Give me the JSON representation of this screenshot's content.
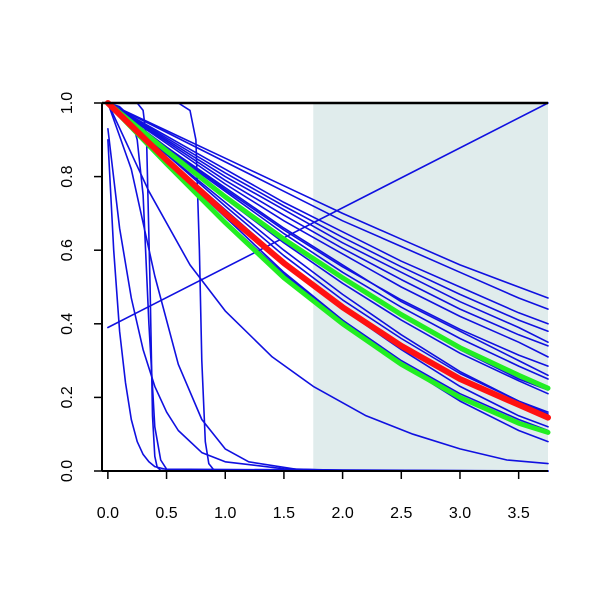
{
  "chart_data": {
    "type": "line",
    "title": "",
    "xlabel": "",
    "ylabel": "",
    "xlim": [
      -0.05,
      3.75
    ],
    "ylim": [
      0.0,
      1.0
    ],
    "x_ticks": [
      0.0,
      0.5,
      1.0,
      1.5,
      2.0,
      2.5,
      3.0,
      3.5
    ],
    "x_tick_labels": [
      "0.0",
      "0.5",
      "1.0",
      "1.5",
      "2.0",
      "2.5",
      "3.0",
      "3.5"
    ],
    "y_ticks": [
      0.0,
      0.2,
      0.4,
      0.6,
      0.8,
      1.0
    ],
    "y_tick_labels": [
      "0.0",
      "0.2",
      "0.4",
      "0.6",
      "0.8",
      "1.0"
    ],
    "grid": false,
    "shaded_region": {
      "x_start": 1.75,
      "x_end": 3.75,
      "color": "#e0ecec"
    },
    "colors": {
      "blue": "#1010e0",
      "green": "#22ee22",
      "red": "#ff1111"
    },
    "series": [
      {
        "color": "blue",
        "width": 1.6,
        "x": [
          0,
          3.75
        ],
        "y": [
          0.39,
          1.0
        ]
      },
      {
        "color": "blue",
        "width": 1.6,
        "x": [
          0,
          0.35,
          0.7,
          1.0,
          1.4,
          1.75,
          2.2,
          2.6,
          3.0,
          3.4,
          3.75
        ],
        "y": [
          1.0,
          0.76,
          0.56,
          0.435,
          0.31,
          0.23,
          0.15,
          0.1,
          0.06,
          0.03,
          0.02
        ]
      },
      {
        "color": "blue",
        "width": 1.6,
        "x": [
          0,
          0.1,
          0.2,
          0.3,
          0.4,
          0.5,
          0.6,
          0.8,
          1.0,
          1.5,
          2.0,
          3.75
        ],
        "y": [
          0.93,
          0.66,
          0.47,
          0.33,
          0.23,
          0.16,
          0.11,
          0.05,
          0.025,
          0.006,
          0.002,
          0.0
        ]
      },
      {
        "color": "blue",
        "width": 1.6,
        "x": [
          0,
          0.05,
          0.1,
          0.15,
          0.2,
          0.25,
          0.3,
          0.35,
          0.4,
          0.5,
          0.7,
          1.0,
          3.75
        ],
        "y": [
          0.9,
          0.6,
          0.38,
          0.24,
          0.14,
          0.08,
          0.045,
          0.025,
          0.012,
          0.004,
          0.001,
          0.0,
          0.0
        ]
      },
      {
        "color": "blue",
        "width": 1.6,
        "x": [
          0,
          0.2,
          0.4,
          0.6,
          0.8,
          1.0,
          1.2,
          1.6,
          2.0,
          3.75
        ],
        "y": [
          1.0,
          0.82,
          0.53,
          0.29,
          0.14,
          0.06,
          0.025,
          0.005,
          0.001,
          0.0
        ]
      },
      {
        "color": "blue",
        "width": 1.6,
        "x": [
          0,
          0.25,
          0.3,
          0.33,
          0.36,
          0.38,
          0.4,
          0.42,
          0.45,
          0.5,
          3.75
        ],
        "y": [
          1.0,
          1.0,
          0.98,
          0.9,
          0.5,
          0.15,
          0.04,
          0.01,
          0.002,
          0.0,
          0.0
        ]
      },
      {
        "color": "blue",
        "width": 1.6,
        "x": [
          0,
          0.1,
          0.2,
          0.25,
          0.3,
          0.35,
          0.4,
          0.45,
          0.5,
          3.75
        ],
        "y": [
          1.0,
          0.99,
          0.96,
          0.9,
          0.75,
          0.4,
          0.12,
          0.03,
          0.005,
          0.0
        ]
      },
      {
        "color": "blue",
        "width": 1.6,
        "x": [
          0,
          0.6,
          0.7,
          0.75,
          0.78,
          0.8,
          0.83,
          0.86,
          0.9,
          1.0,
          3.75
        ],
        "y": [
          1.0,
          1.0,
          0.98,
          0.9,
          0.6,
          0.3,
          0.08,
          0.02,
          0.004,
          0.0,
          0.0
        ]
      },
      {
        "color": "blue",
        "width": 1.6,
        "x": [
          0,
          0.5,
          1.0,
          1.5,
          2.0,
          2.5,
          3.0,
          3.5,
          3.75
        ],
        "y": [
          1.0,
          0.87,
          0.75,
          0.63,
          0.52,
          0.42,
          0.33,
          0.25,
          0.22
        ]
      },
      {
        "color": "blue",
        "width": 1.6,
        "x": [
          0,
          0.5,
          1.0,
          1.5,
          2.0,
          2.5,
          3.0,
          3.5,
          3.75
        ],
        "y": [
          1.0,
          0.86,
          0.73,
          0.6,
          0.48,
          0.37,
          0.27,
          0.19,
          0.16
        ]
      },
      {
        "color": "blue",
        "width": 1.6,
        "x": [
          0,
          0.5,
          1.0,
          1.5,
          2.0,
          2.5,
          3.0,
          3.5,
          3.75
        ],
        "y": [
          1.0,
          0.85,
          0.71,
          0.57,
          0.44,
          0.33,
          0.23,
          0.15,
          0.12
        ]
      },
      {
        "color": "blue",
        "width": 1.6,
        "x": [
          0,
          0.5,
          1.0,
          1.5,
          2.0,
          2.5,
          3.0,
          3.5,
          3.75
        ],
        "y": [
          1.0,
          0.84,
          0.69,
          0.54,
          0.41,
          0.29,
          0.19,
          0.11,
          0.08
        ]
      },
      {
        "color": "blue",
        "width": 1.6,
        "x": [
          0,
          0.5,
          1.0,
          1.5,
          2.0,
          2.5,
          3.0,
          3.5,
          3.75
        ],
        "y": [
          1.0,
          0.88,
          0.77,
          0.66,
          0.56,
          0.46,
          0.38,
          0.3,
          0.26
        ]
      },
      {
        "color": "blue",
        "width": 1.6,
        "x": [
          0,
          0.5,
          1.0,
          1.5,
          2.0,
          2.5,
          3.0,
          3.5,
          3.75
        ],
        "y": [
          1.0,
          0.89,
          0.78,
          0.68,
          0.59,
          0.5,
          0.42,
          0.35,
          0.31
        ]
      },
      {
        "color": "blue",
        "width": 1.6,
        "x": [
          0,
          0.5,
          1.0,
          1.5,
          2.0,
          2.5,
          3.0,
          3.5,
          3.75
        ],
        "y": [
          1.0,
          0.9,
          0.8,
          0.71,
          0.62,
          0.54,
          0.46,
          0.39,
          0.35
        ]
      },
      {
        "color": "blue",
        "width": 1.6,
        "x": [
          0,
          0.5,
          1.0,
          1.5,
          2.0,
          2.5,
          3.0,
          3.5,
          3.75
        ],
        "y": [
          1.0,
          0.91,
          0.82,
          0.73,
          0.65,
          0.57,
          0.5,
          0.43,
          0.4
        ]
      },
      {
        "color": "blue",
        "width": 1.6,
        "x": [
          0,
          0.5,
          1.0,
          1.5,
          2.0,
          2.5,
          3.0,
          3.5,
          3.75
        ],
        "y": [
          1.0,
          0.92,
          0.84,
          0.76,
          0.68,
          0.61,
          0.54,
          0.47,
          0.44
        ]
      },
      {
        "color": "blue",
        "width": 1.6,
        "x": [
          0,
          0.5,
          1.0,
          1.5,
          2.0,
          2.5,
          3.0,
          3.5,
          3.75
        ],
        "y": [
          1.0,
          0.925,
          0.85,
          0.775,
          0.7,
          0.63,
          0.56,
          0.5,
          0.47
        ]
      },
      {
        "color": "blue",
        "width": 1.6,
        "x": [
          0,
          0.5,
          1.0,
          1.5,
          2.0,
          2.5,
          3.0,
          3.5,
          3.75
        ],
        "y": [
          1.0,
          0.905,
          0.81,
          0.72,
          0.635,
          0.555,
          0.48,
          0.41,
          0.38
        ]
      },
      {
        "color": "blue",
        "width": 1.6,
        "x": [
          0,
          0.5,
          1.0,
          1.5,
          2.0,
          2.5,
          3.0,
          3.5,
          3.75
        ],
        "y": [
          1.0,
          0.895,
          0.79,
          0.695,
          0.605,
          0.52,
          0.44,
          0.37,
          0.34
        ]
      },
      {
        "color": "blue",
        "width": 1.6,
        "x": [
          0,
          0.5,
          1.0,
          1.5,
          2.0,
          2.5,
          3.0,
          3.5,
          3.75
        ],
        "y": [
          1.0,
          0.875,
          0.76,
          0.645,
          0.54,
          0.445,
          0.36,
          0.285,
          0.25
        ]
      },
      {
        "color": "blue",
        "width": 1.6,
        "x": [
          0,
          0.5,
          1.0,
          1.5,
          2.0,
          2.5,
          3.0,
          3.5,
          3.75
        ],
        "y": [
          1.0,
          0.865,
          0.74,
          0.62,
          0.51,
          0.41,
          0.32,
          0.245,
          0.21
        ]
      },
      {
        "color": "blue",
        "width": 1.6,
        "x": [
          0,
          0.5,
          1.0,
          1.5,
          2.0,
          2.5,
          3.0,
          3.5,
          3.75
        ],
        "y": [
          1.0,
          0.835,
          0.68,
          0.535,
          0.41,
          0.3,
          0.21,
          0.14,
          0.11
        ]
      },
      {
        "color": "blue",
        "width": 1.6,
        "x": [
          0,
          0.5,
          1.0,
          1.5,
          2.0,
          2.5,
          3.0,
          3.5,
          3.75
        ],
        "y": [
          1.0,
          0.845,
          0.7,
          0.565,
          0.445,
          0.34,
          0.25,
          0.18,
          0.14
        ]
      },
      {
        "color": "blue",
        "width": 1.6,
        "x": [
          0,
          0.5,
          1.0,
          1.5,
          2.0,
          2.5,
          3.0,
          3.5,
          3.75
        ],
        "y": [
          1.0,
          0.86,
          0.72,
          0.585,
          0.465,
          0.36,
          0.265,
          0.19,
          0.155
        ]
      },
      {
        "color": "blue",
        "width": 1.6,
        "x": [
          0,
          0.5,
          1.0,
          1.5,
          2.0,
          2.5,
          3.0,
          3.5,
          3.75
        ],
        "y": [
          1.0,
          0.88,
          0.765,
          0.655,
          0.555,
          0.465,
          0.385,
          0.315,
          0.285
        ]
      },
      {
        "color": "green",
        "width": 5,
        "x": [
          0,
          0.5,
          1.0,
          1.5,
          2.0,
          2.5,
          3.0,
          3.5,
          3.75
        ],
        "y": [
          1.0,
          0.87,
          0.745,
          0.63,
          0.525,
          0.425,
          0.335,
          0.26,
          0.225
        ]
      },
      {
        "color": "green",
        "width": 5,
        "x": [
          0,
          0.5,
          1.0,
          1.5,
          2.0,
          2.5,
          3.0,
          3.5,
          3.75
        ],
        "y": [
          1.0,
          0.835,
          0.675,
          0.525,
          0.4,
          0.29,
          0.2,
          0.13,
          0.105
        ]
      },
      {
        "color": "red",
        "width": 6,
        "x": [
          0,
          0.5,
          1.0,
          1.5,
          2.0,
          2.5,
          3.0,
          3.5,
          3.75
        ],
        "y": [
          1.0,
          0.845,
          0.7,
          0.565,
          0.445,
          0.34,
          0.25,
          0.18,
          0.145
        ]
      }
    ]
  }
}
